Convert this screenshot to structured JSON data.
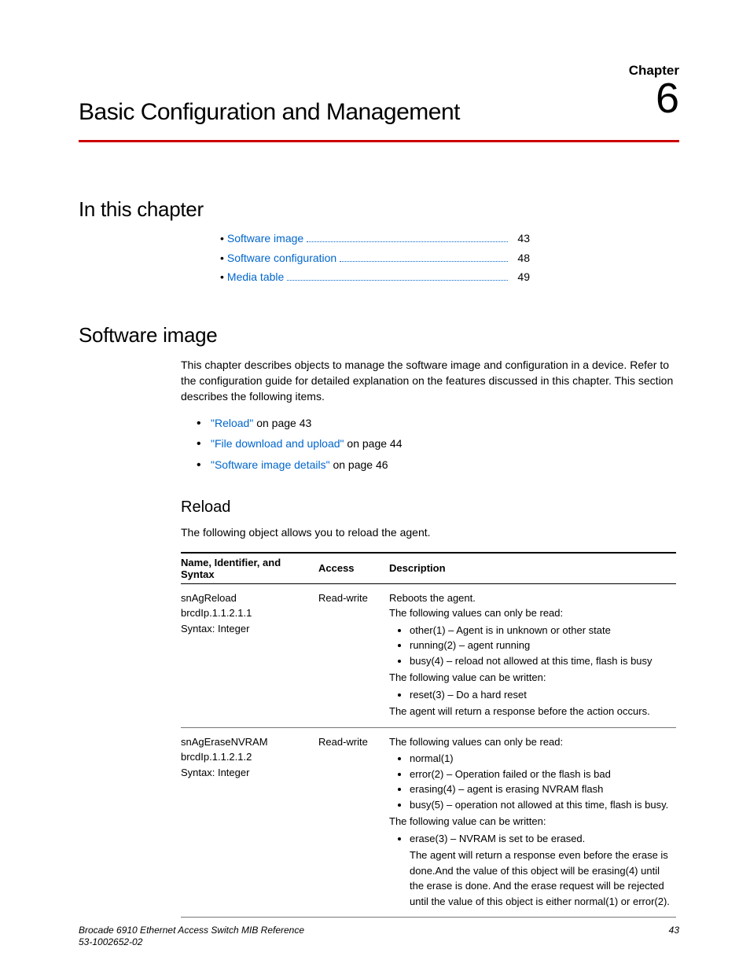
{
  "colors": {
    "accent_rule": "#cc0000",
    "link": "#0066cc",
    "text": "#000000",
    "bg": "#ffffff"
  },
  "chapter": {
    "label": "Chapter",
    "number": "6",
    "title": "Basic Configuration and Management"
  },
  "sections": {
    "in_this_chapter": "In this chapter",
    "software_image": "Software image",
    "reload": "Reload"
  },
  "toc": [
    {
      "label": "Software image",
      "page": "43"
    },
    {
      "label": "Software configuration",
      "page": "48"
    },
    {
      "label": "Media table",
      "page": "49"
    }
  ],
  "intro": "This chapter describes objects to manage the software image and configuration in a device. Refer to the configuration guide for detailed explanation on the features discussed in this chapter. This section describes the following items.",
  "intro_links": [
    {
      "link": "\"Reload\"",
      "suffix": " on page 43"
    },
    {
      "link": "\"File download and upload\"",
      "suffix": " on page 44"
    },
    {
      "link": "\"Software image details\"",
      "suffix": " on page 46"
    }
  ],
  "reload_intro": "The following object allows you to reload the agent.",
  "table": {
    "headers": {
      "c1": "Name, Identifier, and Syntax",
      "c2": "Access",
      "c3": "Description"
    },
    "rows": [
      {
        "name_lines": [
          "snAgReload",
          "brcdIp.1.1.2.1.1",
          "Syntax: Integer"
        ],
        "access": "Read-write",
        "desc_pre1": "Reboots the agent.",
        "desc_pre2": "The following values can only be read:",
        "read_vals": [
          "other(1) – Agent is in unknown or other state",
          "running(2) – agent running",
          "busy(4) – reload not allowed at this time, flash is busy"
        ],
        "desc_mid": "The following value can be written:",
        "write_vals": [
          "reset(3) – Do a hard reset"
        ],
        "desc_post": "The agent will return a response before the action occurs."
      },
      {
        "name_lines": [
          "snAgEraseNVRAM",
          "brcdIp.1.1.2.1.2",
          "Syntax: Integer"
        ],
        "access": "Read-write",
        "desc_pre2": "The following values can only be read:",
        "read_vals": [
          "normal(1)",
          "error(2) – Operation failed or the flash is bad",
          "erasing(4) – agent is erasing NVRAM flash",
          "busy(5) – operation not allowed at this time, flash is busy."
        ],
        "desc_mid": "The following value can be written:",
        "write_vals": [
          "erase(3) – NVRAM is set to be erased."
        ],
        "desc_post": "The agent will return a response even before the erase is done.And the value of this object will be erasing(4) until the erase is done. And the erase request will be rejected until the value of this object is either normal(1) or error(2)."
      }
    ]
  },
  "footer": {
    "doc_title": "Brocade 6910 Ethernet Access Switch MIB Reference",
    "doc_id": "53-1002652-02",
    "page": "43"
  }
}
